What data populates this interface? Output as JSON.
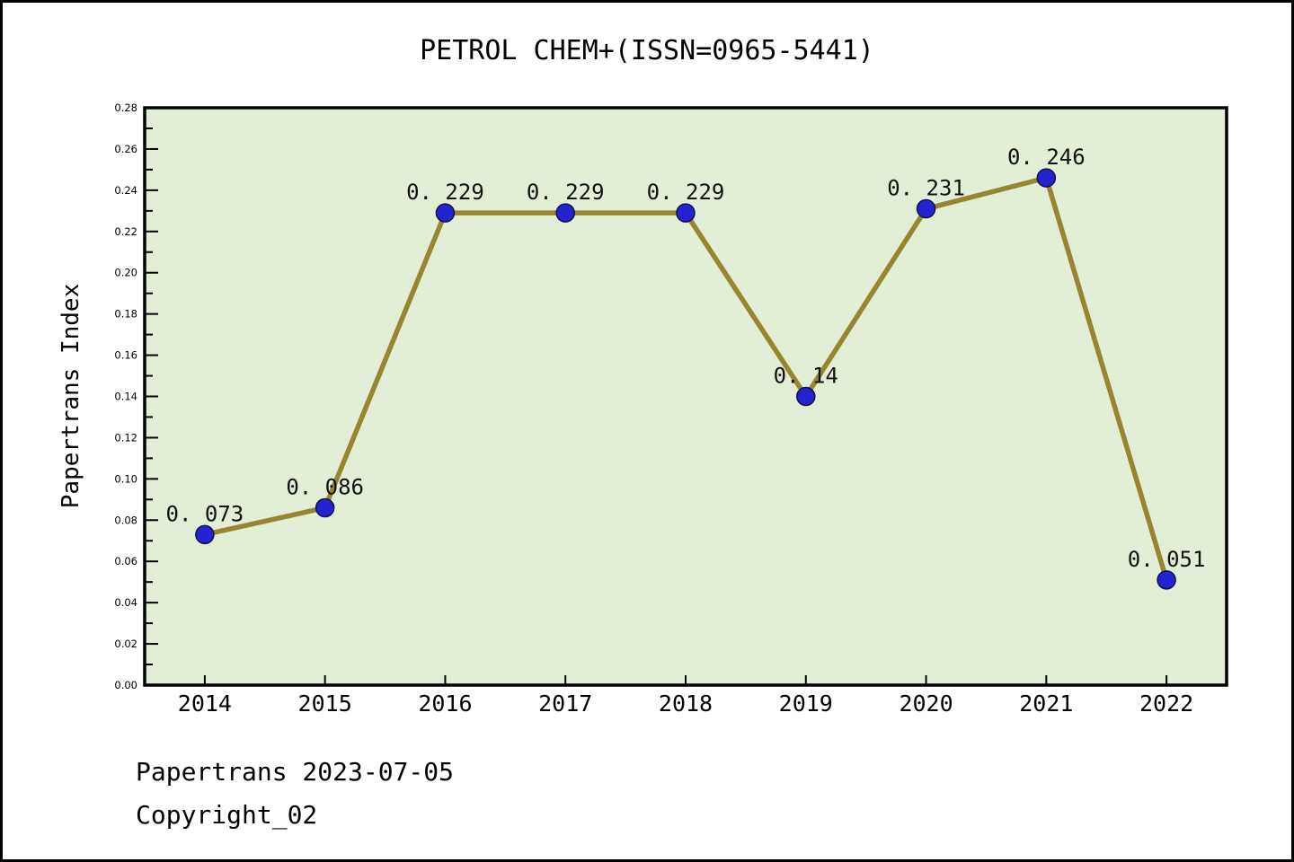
{
  "chart_data": {
    "type": "line",
    "title": "PETROL CHEM+(ISSN=0965-5441)",
    "xlabel": "",
    "ylabel": "Papertrans Index",
    "categories": [
      2014,
      2015,
      2016,
      2017,
      2018,
      2019,
      2020,
      2021,
      2022
    ],
    "values": [
      0.073,
      0.086,
      0.229,
      0.229,
      0.229,
      0.14,
      0.231,
      0.246,
      0.051
    ],
    "point_labels": [
      "0. 073",
      "0. 086",
      "0. 229",
      "0. 229",
      "0. 229",
      "0. 14",
      "0. 231",
      "0. 246",
      "0. 051"
    ],
    "series_name": "Papertrans Index",
    "xlim": [
      2013.5,
      2022.5
    ],
    "ylim": [
      0.0,
      0.28
    ],
    "ytick_step": 0.02,
    "yminor_step": 0.01,
    "grid": false,
    "legend": "none",
    "colors": {
      "plot_bg": "#e3eed7",
      "line": "#97862d",
      "marker_fill": "#2323d1",
      "marker_edge": "#10104d",
      "axis": "#000000",
      "text": "#000000"
    }
  },
  "footer": {
    "line1": "Papertrans 2023-07-05",
    "line2": "Copyright_02"
  }
}
